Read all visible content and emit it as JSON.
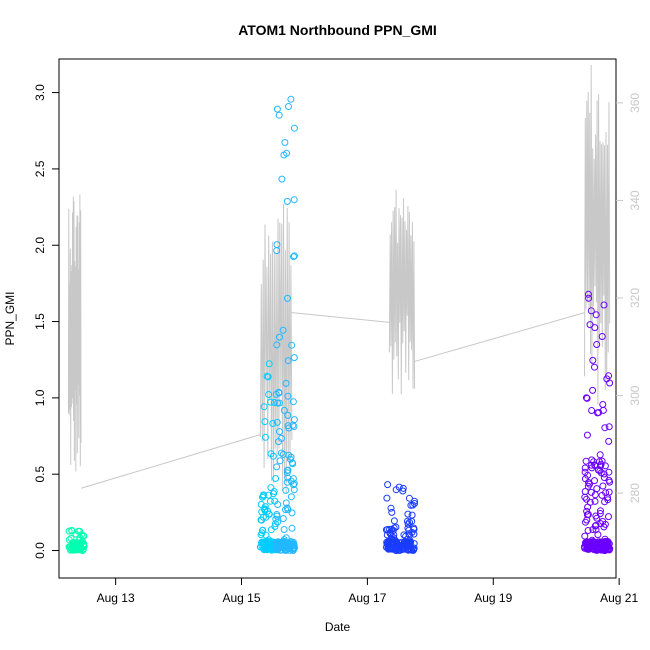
{
  "chart_data": {
    "type": "scatter",
    "title": "ATOM1 Northbound PPN_GMI",
    "xlabel": "Date",
    "ylabel": "PPN_GMI",
    "x_range_days": [
      12.1,
      20.95
    ],
    "ylim": [
      -0.18,
      3.22
    ],
    "y2lim": [
      262.6,
      369.0
    ],
    "x_ticks": [
      {
        "value": 13,
        "label": "Aug 13"
      },
      {
        "value": 15,
        "label": "Aug 15"
      },
      {
        "value": 17,
        "label": "Aug 17"
      },
      {
        "value": 19,
        "label": "Aug 19"
      },
      {
        "value": 21,
        "label": "Aug 21"
      }
    ],
    "y_ticks": [
      {
        "value": 0.0,
        "label": "0.0"
      },
      {
        "value": 0.5,
        "label": "0.5"
      },
      {
        "value": 1.0,
        "label": "1.0"
      },
      {
        "value": 1.5,
        "label": "1.5"
      },
      {
        "value": 2.0,
        "label": "2.0"
      },
      {
        "value": 2.5,
        "label": "2.5"
      },
      {
        "value": 3.0,
        "label": "3.0"
      }
    ],
    "y2_ticks": [
      {
        "value": 280,
        "label": "280"
      },
      {
        "value": 300,
        "label": "300"
      },
      {
        "value": 320,
        "label": "320"
      },
      {
        "value": 340,
        "label": "340"
      },
      {
        "value": 360,
        "label": "360"
      }
    ],
    "grid": false,
    "legend": "none",
    "point_clusters": [
      {
        "x_start": 12.25,
        "x_end": 12.5,
        "color": "#00ffb0",
        "max_y": 0.16,
        "count": 70
      },
      {
        "x_start": 15.3,
        "x_end": 15.55,
        "color": "#00ccff",
        "max_y": 1.27,
        "count": 110
      },
      {
        "x_start": 15.55,
        "x_end": 15.85,
        "color": "#22b8ff",
        "max_y": 3.08,
        "count": 180
      },
      {
        "x_start": 17.3,
        "x_end": 17.75,
        "color": "#1a3cff",
        "max_y": 0.44,
        "count": 150
      },
      {
        "x_start": 20.45,
        "x_end": 20.85,
        "color": "#6a00ff",
        "max_y": 1.7,
        "count": 230
      }
    ],
    "line_series": {
      "name": "",
      "color": "#c8c8c8",
      "axis": "right",
      "segments": [
        {
          "x_start": 12.25,
          "x_end": 12.45,
          "lo": 282,
          "hi": 345
        },
        {
          "x_start": 15.3,
          "x_end": 15.8,
          "lo": 280,
          "hi": 345
        },
        {
          "x_start": 17.35,
          "x_end": 17.75,
          "lo": 300,
          "hi": 347
        },
        {
          "x_start": 20.45,
          "x_end": 20.85,
          "lo": 298,
          "hi": 368
        }
      ],
      "connectors": [
        {
          "x1": 12.45,
          "y1": 281,
          "x2": 15.3,
          "y2": 292
        },
        {
          "x1": 15.8,
          "y1": 317,
          "x2": 17.35,
          "y2": 315
        },
        {
          "x1": 17.75,
          "y1": 307,
          "x2": 20.45,
          "y2": 317
        }
      ]
    }
  }
}
